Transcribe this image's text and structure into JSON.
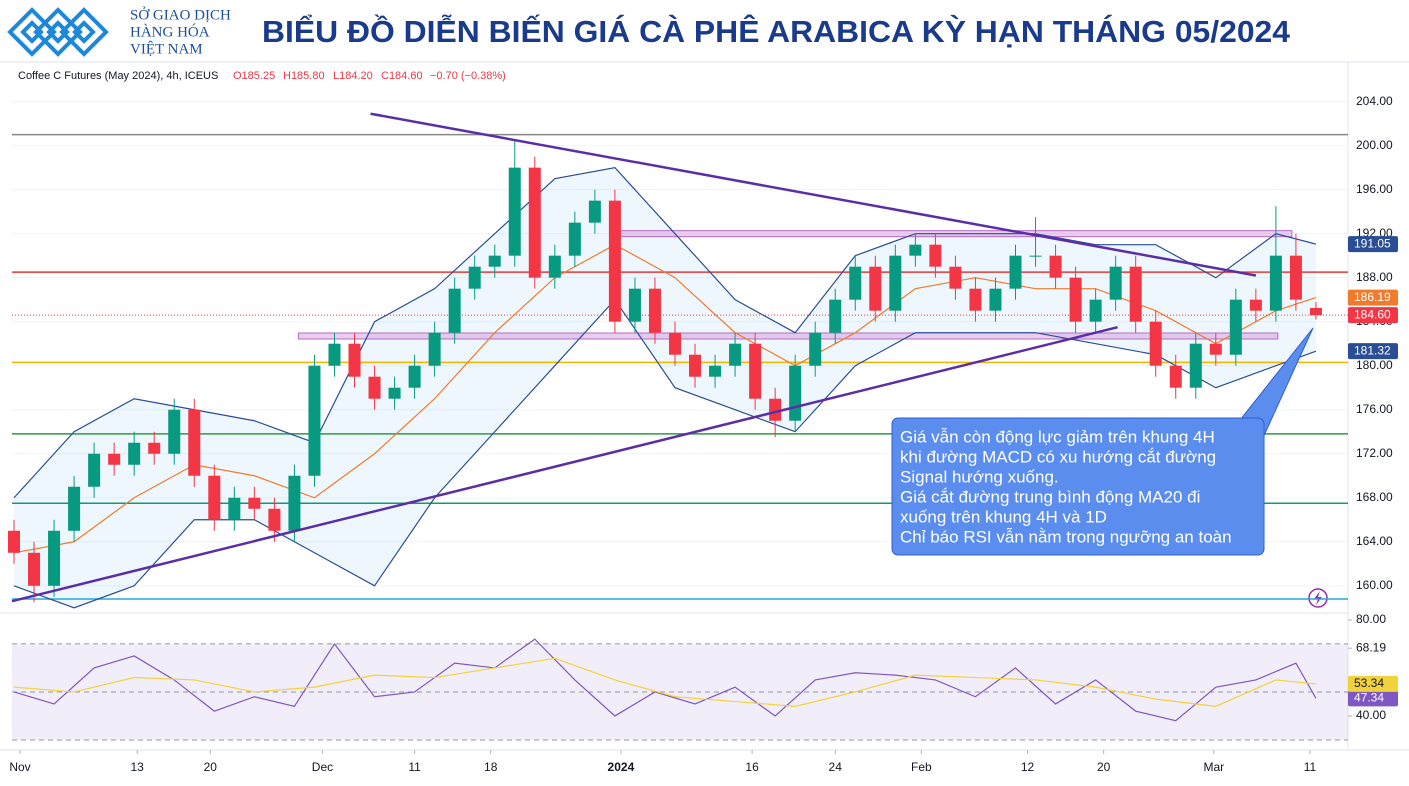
{
  "header": {
    "logo": [
      "SỞ GIAO DỊCH",
      "HÀNG HÓA",
      "VIỆT NAM"
    ],
    "title": "BIỂU ĐỒ DIỄN BIẾN GIÁ CÀ PHÊ ARABICA KỲ HẠN THÁNG 05/2024"
  },
  "chart_data": [
    {
      "type": "candlestick",
      "info": [
        "Coffee C Futures (May 2024), 4h, ICEUS",
        "O185.25",
        "H185.80",
        "L184.20",
        "C184.60",
        "−0.70 (−0.38%)"
      ],
      "x": [
        0,
        1,
        2,
        3,
        4,
        5,
        6,
        7,
        8,
        9,
        10,
        11,
        12,
        13,
        14,
        15,
        16,
        17,
        18,
        19,
        20,
        21,
        22,
        23,
        24,
        25,
        26,
        27,
        28,
        29,
        30,
        31,
        32,
        33,
        34,
        35,
        36,
        37,
        38,
        39,
        40,
        41,
        42,
        43,
        44,
        45,
        46,
        47,
        48,
        49,
        50,
        51,
        52,
        53,
        54,
        55,
        56,
        57,
        58,
        59,
        60,
        61,
        62,
        63,
        64,
        65
      ],
      "open": [
        165,
        163,
        160,
        165,
        169,
        172,
        171,
        173,
        172,
        176,
        170,
        166,
        168,
        167,
        165,
        170,
        180,
        182,
        179,
        177,
        178,
        180,
        183,
        187,
        189,
        190,
        198,
        188,
        190,
        193,
        195,
        184,
        187,
        183,
        181,
        179,
        180,
        182,
        177,
        175,
        180,
        183,
        186,
        189,
        185,
        190,
        191,
        189,
        187,
        185,
        187,
        190,
        190,
        188,
        184,
        186,
        189,
        184,
        180,
        178,
        182,
        181,
        186,
        185,
        190,
        185.25
      ],
      "high": [
        166,
        164,
        166,
        170,
        173,
        173,
        174,
        174,
        177,
        177,
        171,
        169,
        169,
        168,
        171,
        181,
        183,
        183,
        180,
        179,
        181,
        184,
        188,
        190,
        191,
        200.5,
        199,
        191,
        194,
        196,
        196,
        188,
        188,
        184,
        182,
        181,
        183,
        183,
        178,
        181,
        184,
        187,
        190,
        190,
        191,
        192,
        192,
        190,
        188,
        188,
        191,
        193.5,
        191,
        189,
        187,
        190,
        190,
        185,
        181,
        183,
        183,
        187,
        187,
        194.5,
        192,
        185.8
      ],
      "low": [
        162,
        158.5,
        159,
        164,
        168,
        170,
        170,
        171,
        171,
        169,
        165,
        165,
        166,
        164,
        164,
        169,
        179,
        178,
        176,
        176,
        177,
        179,
        182,
        186,
        188,
        189,
        187,
        187,
        189,
        192,
        183,
        183,
        182,
        180,
        178,
        178,
        179,
        176,
        173.5,
        174,
        179,
        182,
        185,
        184,
        184,
        189,
        188,
        186,
        184,
        184,
        186,
        189,
        187,
        183,
        183,
        185,
        183,
        179,
        177,
        177,
        180,
        180,
        184,
        184,
        185,
        184.2
      ],
      "close": [
        163,
        160,
        165,
        169,
        172,
        171,
        173,
        172,
        176,
        170,
        166,
        168,
        167,
        165,
        170,
        180,
        182,
        179,
        177,
        178,
        180,
        183,
        187,
        189,
        190,
        198,
        188,
        190,
        193,
        195,
        184,
        187,
        183,
        181,
        179,
        180,
        182,
        177,
        175,
        180,
        183,
        186,
        189,
        185,
        190,
        191,
        189,
        187,
        185,
        187,
        190,
        190,
        188,
        184,
        186,
        189,
        184,
        180,
        178,
        182,
        181,
        186,
        185,
        190,
        186,
        184.6
      ],
      "up_color": "#089981",
      "down_color": "#f23645",
      "last_price": {
        "value": 184.6,
        "label": "184.60",
        "color": "#f23645"
      },
      "lines": [
        {
          "name": "BB upper",
          "color": "#2a4e96",
          "x": [
            0,
            3,
            6,
            9,
            12,
            15,
            18,
            21,
            24,
            27,
            30,
            33,
            36,
            39,
            42,
            45,
            48,
            51,
            54,
            57,
            60,
            63,
            65
          ],
          "values": [
            168,
            174,
            177,
            176,
            175,
            173,
            184,
            187,
            192,
            197,
            198,
            192,
            186,
            183,
            190,
            192,
            192,
            192,
            191,
            191,
            188,
            192,
            191.05
          ]
        },
        {
          "name": "MA20",
          "color": "#f07b2c",
          "x": [
            0,
            3,
            6,
            9,
            12,
            15,
            18,
            21,
            24,
            27,
            30,
            33,
            36,
            39,
            42,
            45,
            48,
            51,
            54,
            57,
            60,
            63,
            65
          ],
          "values": [
            163,
            164,
            168,
            171,
            170,
            168,
            172,
            177,
            183,
            188,
            191,
            188,
            183,
            180,
            183,
            187,
            188,
            187,
            187,
            185,
            182,
            185,
            186.19
          ]
        },
        {
          "name": "BB lower",
          "color": "#2a4e96",
          "x": [
            0,
            3,
            6,
            9,
            12,
            15,
            18,
            21,
            24,
            27,
            30,
            33,
            36,
            39,
            42,
            45,
            48,
            51,
            54,
            57,
            60,
            63,
            65
          ],
          "values": [
            160,
            158,
            160,
            166,
            166,
            163,
            160,
            168,
            174,
            180,
            186,
            178,
            176,
            174,
            180,
            183,
            183,
            183,
            182,
            181,
            178,
            180,
            181.32
          ]
        }
      ],
      "levels": [
        {
          "value": 201,
          "color": "#888888"
        },
        {
          "value": 188.5,
          "color": "#e53935"
        },
        {
          "value": 180.3,
          "color": "#f5b400"
        },
        {
          "value": 173.8,
          "color": "#2e9a45"
        },
        {
          "value": 167.5,
          "color": "#119a72"
        },
        {
          "value": 158.8,
          "color": "#26a8d8"
        }
      ],
      "zones": [
        {
          "value": 192,
          "x": [
            29.8,
            63.8
          ]
        },
        {
          "value": 182.7,
          "x": [
            14.2,
            63.1
          ]
        }
      ],
      "trendlines": [
        {
          "x": [
            17.8,
            62
          ],
          "y": [
            202.9,
            188.2
          ]
        },
        {
          "x": [
            -0.1,
            55.1
          ],
          "y": [
            158.6,
            183.5
          ]
        }
      ],
      "annotation": [
        " Giá vẫn còn động lực giảm trên khung 4H",
        "khi đường MACD có xu hướng cắt đường",
        "Signal hướng xuống.",
        "Giá cắt đường trung bình động MA20 đi",
        "xuống trên khung 4H và 1D",
        "Chỉ báo RSI vẫn nằm trong ngưỡng an toàn"
      ],
      "xlim": [
        -0.1,
        66.6
      ],
      "xticks": [
        {
          "value": 0.3,
          "label": "Nov"
        },
        {
          "value": 6.15,
          "label": "13"
        },
        {
          "value": 9.8,
          "label": "20"
        },
        {
          "value": 15.4,
          "label": "Dec"
        },
        {
          "value": 20,
          "label": "11"
        },
        {
          "value": 23.8,
          "label": "18"
        },
        {
          "value": 30.3,
          "label": "2024"
        },
        {
          "value": 36.85,
          "label": "16"
        },
        {
          "value": 41,
          "label": "24"
        },
        {
          "value": 45.3,
          "label": "Feb"
        },
        {
          "value": 50.6,
          "label": "12"
        },
        {
          "value": 54.4,
          "label": "20"
        },
        {
          "value": 59.9,
          "label": "Mar"
        },
        {
          "value": 64.7,
          "label": "11"
        }
      ],
      "ylim": [
        157.8,
        207.6
      ],
      "yticks": [
        {
          "value": 160,
          "label": "160.00"
        },
        {
          "value": 164,
          "label": "164.00"
        },
        {
          "value": 168,
          "label": "168.00"
        },
        {
          "value": 172,
          "label": "172.00"
        },
        {
          "value": 176,
          "label": "176.00"
        },
        {
          "value": 180,
          "label": "180.00"
        },
        {
          "value": 184,
          "label": "184.00"
        },
        {
          "value": 188,
          "label": "188.00"
        },
        {
          "value": 192,
          "label": "192.00"
        },
        {
          "value": 196,
          "label": "196.00"
        },
        {
          "value": 200,
          "label": "200.00"
        },
        {
          "value": 204,
          "label": "204.00"
        }
      ]
    },
    {
      "type": "line",
      "series": [
        {
          "name": "RSI",
          "color": "#7e57c2",
          "x": [
            0,
            2,
            4,
            6,
            8,
            10,
            12,
            14,
            16,
            18,
            20,
            22,
            24,
            26,
            28,
            30,
            32,
            34,
            36,
            38,
            40,
            42,
            44,
            46,
            48,
            50,
            52,
            54,
            56,
            58,
            60,
            62,
            64,
            65
          ],
          "values": [
            50,
            45,
            60,
            65,
            55,
            42,
            48,
            44,
            70,
            48,
            50,
            62,
            60,
            72,
            55,
            40,
            50,
            45,
            52,
            40,
            55,
            58,
            57,
            55,
            48,
            60,
            45,
            55,
            42,
            38,
            52,
            55,
            62,
            47.34
          ]
        },
        {
          "name": "RSI MA",
          "color": "#f2d23a",
          "x": [
            0,
            3,
            6,
            9,
            12,
            15,
            18,
            21,
            24,
            27,
            30,
            33,
            36,
            39,
            42,
            45,
            48,
            51,
            54,
            57,
            60,
            63,
            65
          ],
          "values": [
            52,
            50,
            56,
            55,
            50,
            52,
            57,
            56,
            60,
            64,
            55,
            48,
            46,
            44,
            50,
            57,
            56,
            55,
            52,
            47,
            44,
            55,
            53.34
          ]
        }
      ],
      "levels": [
        70,
        50,
        30
      ],
      "xlim": [
        -0.1,
        66.6
      ],
      "ylim": [
        27.9,
        80.8
      ],
      "yticks": [
        {
          "value": 40,
          "label": "40.00"
        },
        {
          "value": 48.1,
          "label": "48.10"
        },
        68.19,
        {
          "value": 80,
          "label": "80.00"
        }
      ]
    }
  ]
}
